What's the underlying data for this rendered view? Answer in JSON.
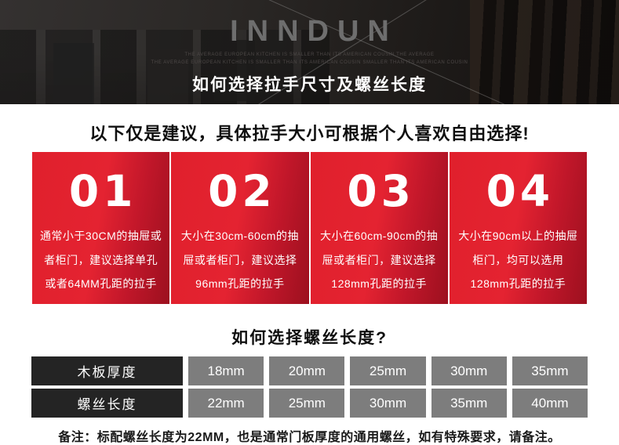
{
  "header": {
    "brand": "INNDUN",
    "tagline_line1": "THE AVERAGE EUROPEAN KITCHEN IS SMALLER THAN ITS AMERICAN COUSIN THE AVERAGE",
    "tagline_line2": "THE AVERAGE EUROPEAN KITCHEN IS SMALLER THAN ITS AMERICAN COUSIN SMALLER THAN ITS AMERICAN COUSIN",
    "title": "如何选择拉手尺寸及螺丝长度"
  },
  "intro": {
    "headline": "以下仅是建议，具体拉手大小可根据个人喜欢自由选择!"
  },
  "cards": [
    {
      "number": "01",
      "text": "通常小于30CM的抽屉或者柜门，建议选择单孔或者64MM孔距的拉手"
    },
    {
      "number": "02",
      "text": "大小在30cm-60cm的抽屉或者柜门，建议选择96mm孔距的拉手"
    },
    {
      "number": "03",
      "text": "大小在60cm-90cm的抽屉或者柜门，建议选择128mm孔距的拉手"
    },
    {
      "number": "04",
      "text": "大小在90cm以上的抽屉柜门，均可以选用128mm孔距的拉手"
    }
  ],
  "screw_section": {
    "title": "如何选择螺丝长度?",
    "table": {
      "rows": [
        {
          "label": "木板厚度",
          "values": [
            "18mm",
            "20mm",
            "25mm",
            "30mm",
            "35mm"
          ]
        },
        {
          "label": "螺丝长度",
          "values": [
            "22mm",
            "25mm",
            "30mm",
            "35mm",
            "40mm"
          ]
        }
      ]
    },
    "note": "备注：标配螺丝长度为22MM，也是通常门板厚度的通用螺丝，如有特殊要求，请备注。"
  },
  "colors": {
    "accent_red": "#e2212e",
    "accent_red_dark": "#9c101f",
    "hero_background": "#211e1c",
    "brand_grey": "#6e6e6e",
    "table_label_bg": "#242424",
    "table_cell_bg": "#7d7d7d",
    "text_white": "#ffffff",
    "text_black": "#0f0f0f"
  }
}
